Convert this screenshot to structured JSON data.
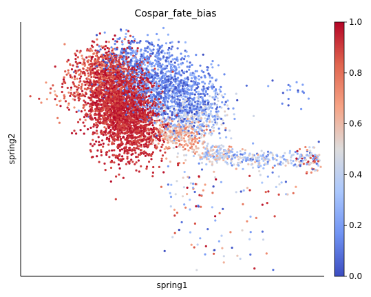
{
  "chart_data": {
    "type": "scatter",
    "title": "Cospar_fate_bias",
    "xlabel": "spring1",
    "ylabel": "spring2",
    "x_ticks": [],
    "y_ticks": [],
    "xlim": [
      0,
      100
    ],
    "ylim": [
      0,
      100
    ],
    "grid": false,
    "legend": "none",
    "colorbar": {
      "position": "right",
      "colormap": "coolwarm",
      "min": 0.0,
      "max": 1.0,
      "ticks": [
        {
          "value": 0.0,
          "label": "0.0"
        },
        {
          "value": 0.2,
          "label": "0.2"
        },
        {
          "value": 0.4,
          "label": "0.4"
        },
        {
          "value": 0.6,
          "label": "0.6"
        },
        {
          "value": 0.8,
          "label": "0.8"
        },
        {
          "value": 1.0,
          "label": "1.0"
        }
      ],
      "stops": [
        "#3b4cc0",
        "#7093f3",
        "#aac7fd",
        "#dddcdc",
        "#f6a385",
        "#e0654f",
        "#b40426"
      ]
    },
    "clusters": [
      {
        "cx": 34,
        "cy": 67,
        "sx": 5.2,
        "sy": 9.5,
        "n": 1700,
        "vmin": 0.88,
        "vmax": 1.0
      },
      {
        "cx": 29,
        "cy": 70,
        "sx": 4.0,
        "sy": 8.0,
        "n": 450,
        "vmin": 0.82,
        "vmax": 1.0
      },
      {
        "cx": 40,
        "cy": 58,
        "sx": 4.0,
        "sy": 6.0,
        "n": 350,
        "vmin": 0.85,
        "vmax": 1.0
      },
      {
        "cx": 26,
        "cy": 82,
        "sx": 3.5,
        "sy": 4.0,
        "n": 280,
        "vmin": 0.7,
        "vmax": 1.0
      },
      {
        "cx": 20,
        "cy": 75,
        "sx": 4.0,
        "sy": 6.0,
        "n": 110,
        "vmin": 0.75,
        "vmax": 1.0
      },
      {
        "cx": 48,
        "cy": 74,
        "sx": 8.0,
        "sy": 6.0,
        "n": 900,
        "vmin": 0.0,
        "vmax": 0.3
      },
      {
        "cx": 38,
        "cy": 85,
        "sx": 7.0,
        "sy": 5.0,
        "n": 380,
        "vmin": 0.0,
        "vmax": 0.3
      },
      {
        "cx": 56,
        "cy": 64,
        "sx": 6.0,
        "sy": 5.0,
        "n": 450,
        "vmin": 0.0,
        "vmax": 0.55
      },
      {
        "cx": 52,
        "cy": 56,
        "sx": 5.5,
        "sy": 3.5,
        "n": 320,
        "vmin": 0.45,
        "vmax": 0.8
      },
      {
        "cx": 65,
        "cy": 48,
        "sx": 4.0,
        "sy": 2.0,
        "n": 160,
        "vmin": 0.2,
        "vmax": 0.7
      },
      {
        "cx": 80,
        "cy": 46,
        "sx": 8.0,
        "sy": 1.8,
        "n": 160,
        "vmin": 0.1,
        "vmax": 0.6
      },
      {
        "cx": 95,
        "cy": 46,
        "sx": 2.0,
        "sy": 2.5,
        "n": 80,
        "vmin": 0.0,
        "vmax": 1.0
      },
      {
        "cx": 90,
        "cy": 72,
        "sx": 4.0,
        "sy": 3.0,
        "n": 18,
        "vmin": 0.0,
        "vmax": 0.3
      },
      {
        "cx": 65,
        "cy": 17,
        "sx": 10.0,
        "sy": 8.0,
        "n": 55,
        "vmin": 0.0,
        "vmax": 1.0
      },
      {
        "cx": 55,
        "cy": 36,
        "sx": 5.0,
        "sy": 5.0,
        "n": 45,
        "vmin": 0.0,
        "vmax": 1.0
      },
      {
        "cx": 78,
        "cy": 38,
        "sx": 10.0,
        "sy": 5.0,
        "n": 30,
        "vmin": 0.0,
        "vmax": 1.0
      },
      {
        "cx": 14,
        "cy": 70,
        "sx": 4.5,
        "sy": 5.0,
        "n": 30,
        "vmin": 0.6,
        "vmax": 1.0
      }
    ]
  }
}
